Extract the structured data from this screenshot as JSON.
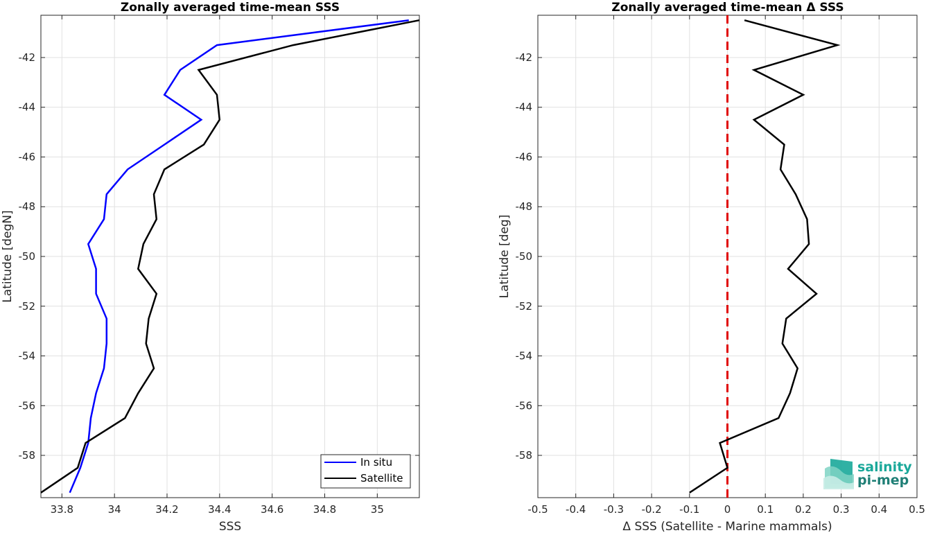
{
  "chart_data": [
    {
      "type": "line",
      "title": "Zonally averaged time-mean SSS",
      "xlabel": "SSS",
      "ylabel": "Latitude [degN]",
      "xlim": [
        33.72,
        35.16
      ],
      "ylim": [
        -59.7,
        -40.3
      ],
      "xticks": [
        33.8,
        34,
        34.2,
        34.4,
        34.6,
        34.8,
        35
      ],
      "xtick_labels": [
        "33.8",
        "34",
        "34.2",
        "34.4",
        "34.6",
        "34.8",
        "35"
      ],
      "yticks": [
        -58,
        -56,
        -54,
        -52,
        -50,
        -48,
        -46,
        -44,
        -42
      ],
      "ytick_labels": [
        "-58",
        "-56",
        "-54",
        "-52",
        "-50",
        "-48",
        "-46",
        "-44",
        "-42"
      ],
      "grid": true,
      "legend": "bottom-right",
      "series": [
        {
          "name": "In situ",
          "color": "#0000ff",
          "points": [
            [
              35.12,
              -40.5
            ],
            [
              34.39,
              -41.5
            ],
            [
              34.25,
              -42.5
            ],
            [
              34.19,
              -43.5
            ],
            [
              34.33,
              -44.5
            ],
            [
              34.19,
              -45.5
            ],
            [
              34.05,
              -46.5
            ],
            [
              33.97,
              -47.5
            ],
            [
              33.96,
              -48.5
            ],
            [
              33.9,
              -49.5
            ],
            [
              33.93,
              -50.5
            ],
            [
              33.93,
              -51.5
            ],
            [
              33.97,
              -52.5
            ],
            [
              33.97,
              -53.5
            ],
            [
              33.96,
              -54.5
            ],
            [
              33.93,
              -55.5
            ],
            [
              33.91,
              -56.5
            ],
            [
              33.9,
              -57.5
            ],
            [
              33.87,
              -58.5
            ],
            [
              33.83,
              -59.5
            ]
          ]
        },
        {
          "name": "Satellite",
          "color": "#000000",
          "points": [
            [
              35.16,
              -40.5
            ],
            [
              34.68,
              -41.5
            ],
            [
              34.32,
              -42.5
            ],
            [
              34.39,
              -43.5
            ],
            [
              34.4,
              -44.5
            ],
            [
              34.34,
              -45.5
            ],
            [
              34.19,
              -46.5
            ],
            [
              34.15,
              -47.5
            ],
            [
              34.16,
              -48.5
            ],
            [
              34.11,
              -49.5
            ],
            [
              34.09,
              -50.5
            ],
            [
              34.16,
              -51.5
            ],
            [
              34.13,
              -52.5
            ],
            [
              34.12,
              -53.5
            ],
            [
              34.15,
              -54.5
            ],
            [
              34.09,
              -55.5
            ],
            [
              34.04,
              -56.5
            ],
            [
              33.89,
              -57.5
            ],
            [
              33.86,
              -58.5
            ],
            [
              33.72,
              -59.5
            ]
          ]
        }
      ]
    },
    {
      "type": "line",
      "title": "Zonally averaged time-mean Δ SSS",
      "xlabel": "Δ SSS (Satellite - Marine mammals)",
      "ylabel": "Latitude [deg]",
      "xlim": [
        -0.5,
        0.5
      ],
      "ylim": [
        -59.7,
        -40.3
      ],
      "xticks": [
        -0.5,
        -0.4,
        -0.3,
        -0.2,
        -0.1,
        0,
        0.1,
        0.2,
        0.3,
        0.4,
        0.5
      ],
      "xtick_labels": [
        "-0.5",
        "-0.4",
        "-0.3",
        "-0.2",
        "-0.1",
        "0",
        "0.1",
        "0.2",
        "0.3",
        "0.4",
        "0.5"
      ],
      "yticks": [
        -58,
        -56,
        -54,
        -52,
        -50,
        -48,
        -46,
        -44,
        -42
      ],
      "ytick_labels": [
        "-58",
        "-56",
        "-54",
        "-52",
        "-50",
        "-48",
        "-46",
        "-44",
        "-42"
      ],
      "grid": true,
      "reference_line": {
        "x": 0,
        "color": "#e00000",
        "style": "dashed"
      },
      "series": [
        {
          "color": "#000000",
          "points": [
            [
              0.045,
              -40.5
            ],
            [
              0.29,
              -41.5
            ],
            [
              0.07,
              -42.5
            ],
            [
              0.2,
              -43.5
            ],
            [
              0.07,
              -44.5
            ],
            [
              0.15,
              -45.5
            ],
            [
              0.14,
              -46.5
            ],
            [
              0.18,
              -47.5
            ],
            [
              0.21,
              -48.5
            ],
            [
              0.215,
              -49.5
            ],
            [
              0.16,
              -50.5
            ],
            [
              0.235,
              -51.5
            ],
            [
              0.155,
              -52.5
            ],
            [
              0.145,
              -53.5
            ],
            [
              0.185,
              -54.5
            ],
            [
              0.165,
              -55.5
            ],
            [
              0.135,
              -56.5
            ],
            [
              -0.02,
              -57.5
            ],
            [
              0.0,
              -58.5
            ],
            [
              -0.1,
              -59.5
            ]
          ]
        }
      ]
    }
  ],
  "logo": {
    "line1": "salinity",
    "line2": "pi-mep",
    "color": "#1aa89a"
  }
}
